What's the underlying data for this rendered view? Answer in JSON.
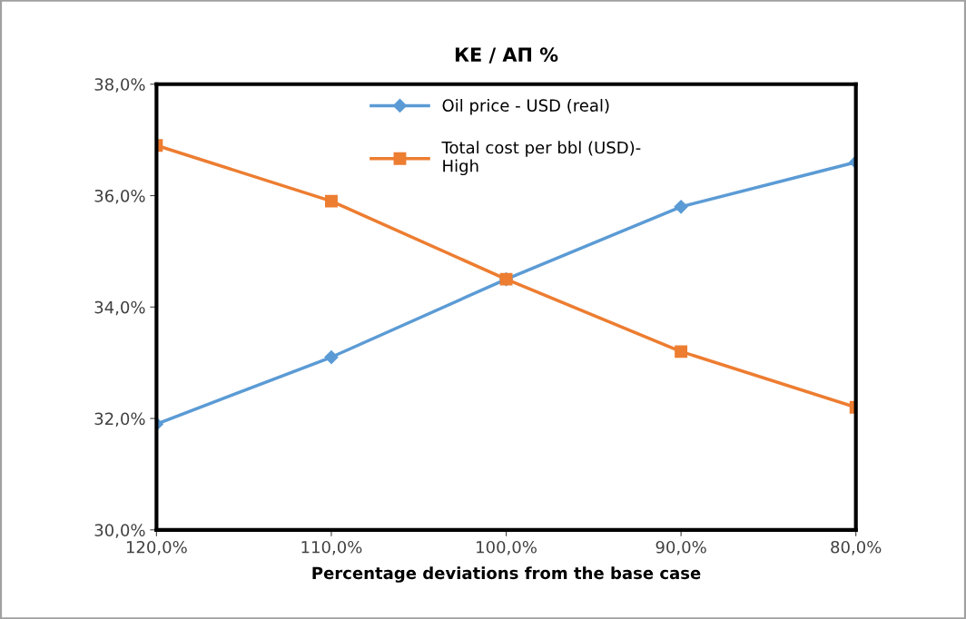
{
  "chart_data": {
    "type": "line",
    "title": "КЕ / АП %",
    "xlabel": "Percentage deviations from the base case",
    "categories": [
      "120,0%",
      "110,0%",
      "100,0%",
      "90,0%",
      "80,0%"
    ],
    "series": [
      {
        "name": "Oil price - USD (real)",
        "color": "#5b9bd5",
        "marker": "diamond",
        "values": [
          31.9,
          33.1,
          34.5,
          35.8,
          36.6
        ]
      },
      {
        "name": "Total cost per bbl (USD)-\nHigh",
        "color": "#ed7d31",
        "marker": "square",
        "values": [
          36.9,
          35.9,
          34.5,
          33.2,
          32.2
        ]
      }
    ],
    "ylim": [
      30,
      38
    ],
    "yticks": [
      {
        "value": 30,
        "label": "30,0%"
      },
      {
        "value": 32,
        "label": "32,0%"
      },
      {
        "value": 34,
        "label": "34,0%"
      },
      {
        "value": 36,
        "label": "36,0%"
      },
      {
        "value": 38,
        "label": "38,0%"
      }
    ],
    "grid": false,
    "legend": "top",
    "line_style": "solid"
  }
}
